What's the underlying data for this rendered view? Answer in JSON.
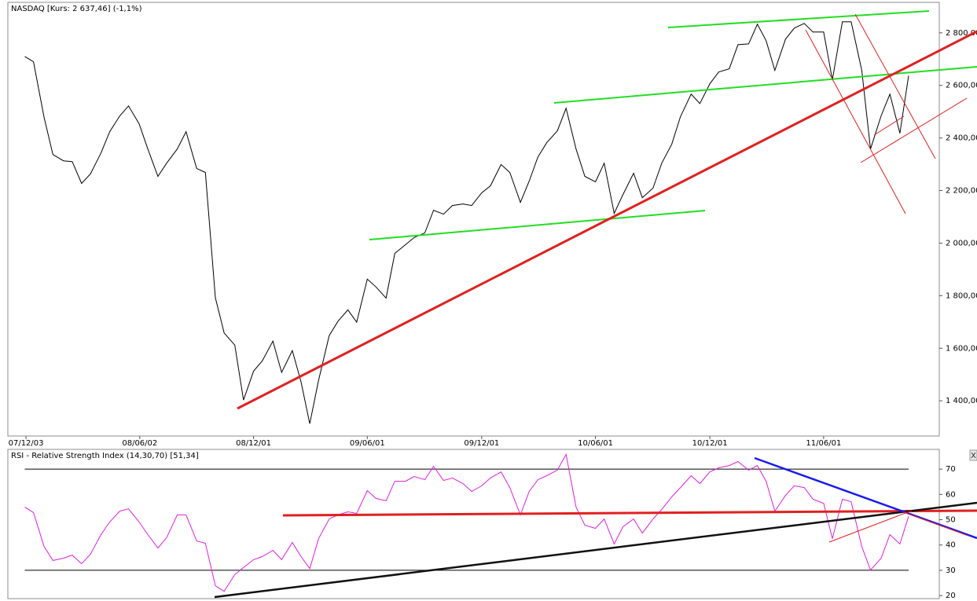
{
  "chart_data": [
    {
      "type": "line",
      "title": "NASDAQ [Kurs: 2 637,46] (-1,1%)",
      "color": "#000000",
      "x": [
        "2007-12-01",
        "2007-12-15",
        "2008-01-01",
        "2008-01-15",
        "2008-02-01",
        "2008-02-15",
        "2008-03-01",
        "2008-03-15",
        "2008-04-01",
        "2008-04-15",
        "2008-05-01",
        "2008-05-15",
        "2008-06-01",
        "2008-06-15",
        "2008-07-01",
        "2008-07-15",
        "2008-08-01",
        "2008-08-15",
        "2008-09-01",
        "2008-09-15",
        "2008-10-01",
        "2008-10-15",
        "2008-11-01",
        "2008-11-15",
        "2008-12-01",
        "2008-12-15",
        "2009-01-01",
        "2009-01-15",
        "2009-02-01",
        "2009-02-15",
        "2009-03-01",
        "2009-03-15",
        "2009-04-01",
        "2009-04-15",
        "2009-05-01",
        "2009-05-15",
        "2009-06-01",
        "2009-06-15",
        "2009-07-01",
        "2009-07-15",
        "2009-08-01",
        "2009-08-15",
        "2009-09-01",
        "2009-09-15",
        "2009-10-01",
        "2009-10-15",
        "2009-11-01",
        "2009-11-15",
        "2009-12-01",
        "2009-12-15",
        "2010-01-01",
        "2010-01-15",
        "2010-02-01",
        "2010-02-15",
        "2010-03-01",
        "2010-03-15",
        "2010-04-01",
        "2010-04-15",
        "2010-05-01",
        "2010-05-15",
        "2010-06-01",
        "2010-06-15",
        "2010-07-01",
        "2010-07-15",
        "2010-08-01",
        "2010-08-15",
        "2010-09-01",
        "2010-09-15",
        "2010-10-01",
        "2010-10-15",
        "2010-11-01",
        "2010-11-15",
        "2010-12-01",
        "2010-12-15",
        "2011-01-01",
        "2011-01-15",
        "2011-02-01",
        "2011-02-15",
        "2011-03-01",
        "2011-03-15",
        "2011-04-01",
        "2011-04-15",
        "2011-05-01",
        "2011-05-15",
        "2011-06-01",
        "2011-06-15",
        "2011-07-01",
        "2011-07-15",
        "2011-08-01",
        "2011-08-15",
        "2011-09-01",
        "2011-09-15",
        "2011-10-01",
        "2011-10-15"
      ],
      "values": [
        2710,
        2690,
        2478,
        2337,
        2313,
        2310,
        2227,
        2263,
        2343,
        2424,
        2484,
        2522,
        2454,
        2358,
        2254,
        2304,
        2358,
        2424,
        2284,
        2269,
        1792,
        1658,
        1612,
        1403,
        1513,
        1552,
        1627,
        1508,
        1591,
        1472,
        1313,
        1478,
        1648,
        1702,
        1746,
        1699,
        1863,
        1833,
        1791,
        1961,
        1994,
        2021,
        2039,
        2125,
        2110,
        2143,
        2149,
        2143,
        2191,
        2218,
        2299,
        2269,
        2155,
        2236,
        2328,
        2382,
        2427,
        2513,
        2358,
        2254,
        2233,
        2304,
        2113,
        2185,
        2266,
        2173,
        2209,
        2304,
        2376,
        2481,
        2567,
        2531,
        2606,
        2651,
        2663,
        2755,
        2758,
        2833,
        2770,
        2657,
        2776,
        2818,
        2836,
        2803,
        2803,
        2621,
        2842,
        2842,
        2657,
        2358,
        2484,
        2567,
        2418,
        2637
      ],
      "xlim": [
        "2007-11-04",
        "2011-12-03"
      ],
      "xticks": [
        {
          "value": "2007-12-03",
          "label": "07/12/03"
        },
        {
          "value": "2008-06-02",
          "label": "08/06/02"
        },
        {
          "value": "2008-12-01",
          "label": "08/12/01"
        },
        {
          "value": "2009-06-01",
          "label": "09/06/01"
        },
        {
          "value": "2009-12-01",
          "label": "09/12/01"
        },
        {
          "value": "2010-06-01",
          "label": "10/06/01"
        },
        {
          "value": "2010-12-01",
          "label": "10/12/01"
        },
        {
          "value": "2011-06-01",
          "label": "11/06/01"
        }
      ],
      "ylim": [
        1266,
        2916
      ],
      "yticks": [
        {
          "value": 1400,
          "label": "1 400,00"
        },
        {
          "value": 1600,
          "label": "1 600,00"
        },
        {
          "value": 1800,
          "label": "1 800,00"
        },
        {
          "value": 2000,
          "label": "2 000,00"
        },
        {
          "value": 2200,
          "label": "2 200,00"
        },
        {
          "value": 2400,
          "label": "2 400,00"
        },
        {
          "value": 2600,
          "label": "2 600,00"
        },
        {
          "value": 2800,
          "label": "2 800,00"
        }
      ]
    },
    {
      "type": "line",
      "title": "RSI - Relative Strength Index (14,30,70) [51,34]",
      "color": "#e020e0",
      "x": [
        "2007-12-01",
        "2007-12-15",
        "2008-01-01",
        "2008-01-15",
        "2008-02-01",
        "2008-02-15",
        "2008-03-01",
        "2008-03-15",
        "2008-04-01",
        "2008-04-15",
        "2008-05-01",
        "2008-05-15",
        "2008-06-01",
        "2008-06-15",
        "2008-07-01",
        "2008-07-15",
        "2008-08-01",
        "2008-08-15",
        "2008-09-01",
        "2008-09-15",
        "2008-10-01",
        "2008-10-15",
        "2008-11-01",
        "2008-11-15",
        "2008-12-01",
        "2008-12-15",
        "2009-01-01",
        "2009-01-15",
        "2009-02-01",
        "2009-02-15",
        "2009-03-01",
        "2009-03-15",
        "2009-04-01",
        "2009-04-15",
        "2009-05-01",
        "2009-05-15",
        "2009-06-01",
        "2009-06-15",
        "2009-07-01",
        "2009-07-15",
        "2009-08-01",
        "2009-08-15",
        "2009-09-01",
        "2009-09-15",
        "2009-10-01",
        "2009-10-15",
        "2009-11-01",
        "2009-11-15",
        "2009-12-01",
        "2009-12-15",
        "2010-01-01",
        "2010-01-15",
        "2010-02-01",
        "2010-02-15",
        "2010-03-01",
        "2010-03-15",
        "2010-04-01",
        "2010-04-15",
        "2010-05-01",
        "2010-05-15",
        "2010-06-01",
        "2010-06-15",
        "2010-07-01",
        "2010-07-15",
        "2010-08-01",
        "2010-08-15",
        "2010-09-01",
        "2010-09-15",
        "2010-10-01",
        "2010-10-15",
        "2010-11-01",
        "2010-11-15",
        "2010-12-01",
        "2010-12-15",
        "2011-01-01",
        "2011-01-15",
        "2011-02-01",
        "2011-02-15",
        "2011-03-01",
        "2011-03-15",
        "2011-04-01",
        "2011-04-15",
        "2011-05-01",
        "2011-05-15",
        "2011-06-01",
        "2011-06-15",
        "2011-07-01",
        "2011-07-15",
        "2011-08-01",
        "2011-08-15",
        "2011-09-01",
        "2011-09-15",
        "2011-10-01",
        "2011-10-15"
      ],
      "values": [
        55.0,
        52.8,
        39.4,
        33.9,
        34.8,
        36.0,
        32.6,
        36.3,
        44.1,
        49.1,
        53.4,
        54.3,
        49.1,
        44.1,
        38.8,
        42.9,
        51.9,
        51.9,
        41.6,
        40.7,
        23.9,
        21.7,
        28.3,
        31.1,
        34.2,
        35.4,
        37.9,
        34.2,
        41.0,
        35.4,
        30.7,
        42.5,
        50.3,
        51.9,
        53.1,
        52.5,
        61.5,
        58.4,
        57.5,
        65.2,
        65.2,
        67.1,
        65.8,
        71.1,
        65.5,
        66.5,
        64.3,
        61.2,
        63.4,
        66.5,
        68.9,
        62.7,
        51.9,
        61.2,
        65.8,
        67.4,
        69.6,
        75.8,
        55.0,
        47.8,
        46.6,
        50.3,
        40.4,
        47.2,
        50.3,
        44.7,
        50.3,
        54.0,
        59.0,
        62.7,
        67.4,
        64.3,
        68.9,
        70.5,
        71.4,
        73.0,
        69.6,
        71.4,
        65.2,
        53.4,
        59.6,
        63.4,
        62.7,
        58.1,
        56.5,
        42.5,
        58.1,
        57.1,
        39.4,
        30.1,
        34.8,
        44.1,
        40.4,
        51.34
      ],
      "xlim": [
        "2007-11-04",
        "2011-12-03"
      ],
      "ylim": [
        18.8,
        77.8
      ],
      "yticks": [
        20,
        30,
        40,
        50,
        60,
        70
      ],
      "hlines": [
        30,
        70
      ]
    }
  ]
}
